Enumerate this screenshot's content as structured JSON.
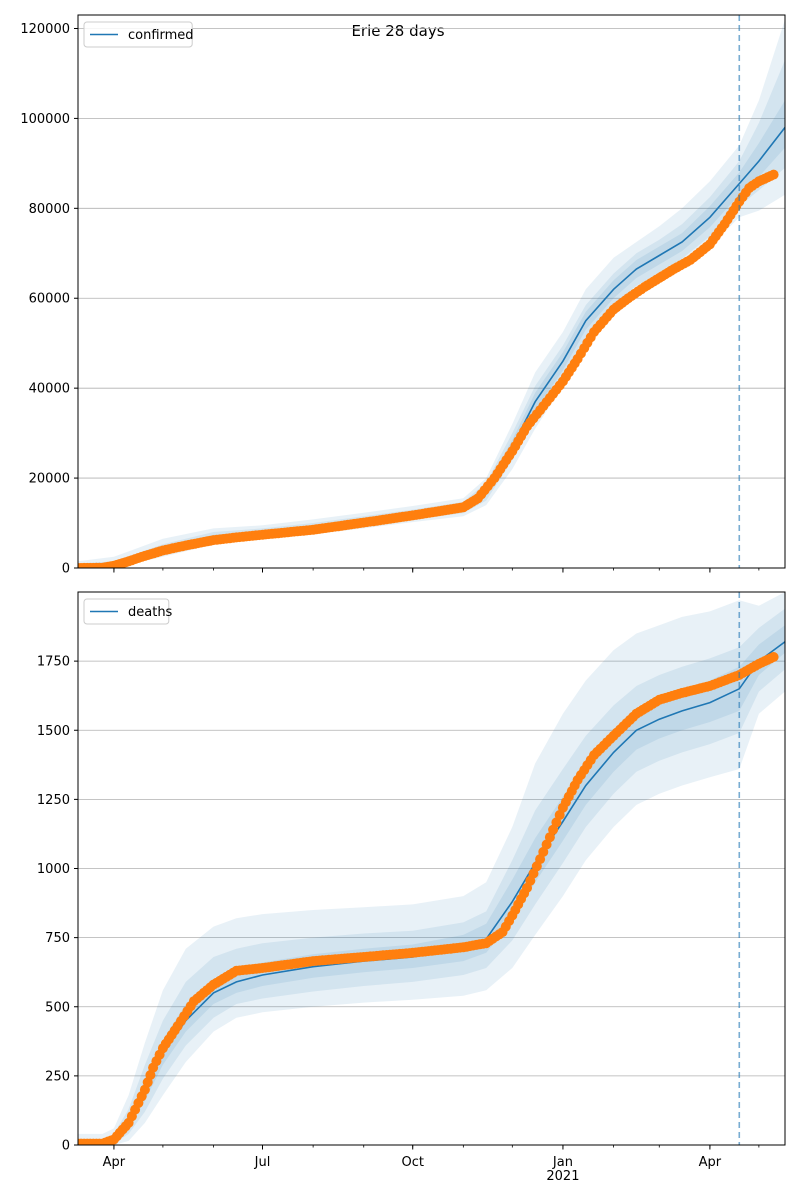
{
  "suptitle": "Erie 28 days",
  "colors": {
    "model": "#1f77b4",
    "observed": "#ff7f0e",
    "grid": "#b0b0b0"
  },
  "chart_data": [
    {
      "type": "line",
      "legend": "confirmed",
      "legend_position": "top-left",
      "grid": "y",
      "ylim": [
        0,
        123000
      ],
      "yticks": [
        0,
        20000,
        40000,
        60000,
        80000,
        100000,
        120000
      ],
      "ytick_labels": [
        "0",
        "20000",
        "40000",
        "60000",
        "80000",
        "100000",
        "120000"
      ],
      "xlim": [
        "2020-03-10",
        "2021-05-17"
      ],
      "xticks": [
        "2020-04-01",
        "2020-07-01",
        "2020-10-01",
        "2021-01-01",
        "2021-04-01"
      ],
      "xtick_labels": [
        "",
        "",
        "",
        "",
        ""
      ],
      "forecast_start": "2021-04-19",
      "model": {
        "x": [
          "2020-03-10",
          "2020-04-01",
          "2020-05-01",
          "2020-06-01",
          "2020-07-01",
          "2020-08-01",
          "2020-09-01",
          "2020-10-01",
          "2020-11-01",
          "2020-11-15",
          "2020-12-01",
          "2020-12-15",
          "2021-01-01",
          "2021-01-15",
          "2021-02-01",
          "2021-02-15",
          "2021-03-01",
          "2021-03-15",
          "2021-04-01",
          "2021-04-19",
          "2021-05-01",
          "2021-05-17"
        ],
        "y": [
          0,
          500,
          4000,
          6800,
          7800,
          9000,
          10500,
          12000,
          13500,
          17000,
          27000,
          37000,
          46000,
          55000,
          62000,
          66500,
          69500,
          72500,
          78000,
          85500,
          90500,
          98000
        ],
        "bands": [
          {
            "lower": [
              0,
              0,
              2500,
              5200,
              6500,
              7500,
              8800,
              10200,
              11500,
              14000,
              22000,
              31000,
              40500,
              49500,
              56000,
              60500,
              63500,
              66500,
              71500,
              78000,
              79500,
              83000
            ],
            "upper": [
              1500,
              2500,
              6500,
              8800,
              9500,
              10800,
              12300,
              13800,
              15500,
              20000,
              32000,
              43500,
              52500,
              62000,
              69000,
              72500,
              76000,
              80000,
              86000,
              94000,
              104000,
              122000
            ]
          },
          {
            "lower": [
              0,
              100,
              3000,
              5800,
              7000,
              8100,
              9400,
              10800,
              12200,
              15000,
              24000,
              33500,
              42500,
              51500,
              58500,
              62800,
              65800,
              68800,
              73800,
              80500,
              84000,
              89000
            ],
            "upper": [
              1000,
              1500,
              5300,
              8000,
              8800,
              10000,
              11500,
              13000,
              14700,
              19000,
              30000,
              40500,
              49500,
              58500,
              65500,
              70000,
              73000,
              76500,
              82500,
              90500,
              99000,
              113000
            ]
          },
          {
            "lower": [
              0,
              250,
              3500,
              6200,
              7300,
              8500,
              9900,
              11300,
              12800,
              16000,
              25500,
              35000,
              44000,
              53000,
              60000,
              64500,
              67500,
              70500,
              75800,
              83000,
              87000,
              93500
            ],
            "upper": [
              500,
              900,
              4600,
              7400,
              8300,
              9500,
              11000,
              12500,
              14100,
              18000,
              28500,
              39000,
              48000,
              57000,
              64000,
              68500,
              71500,
              74500,
              80500,
              88000,
              94500,
              104000
            ]
          }
        ]
      },
      "observed": {
        "x": [
          "2020-03-10",
          "2020-03-25",
          "2020-04-01",
          "2020-04-10",
          "2020-04-20",
          "2020-05-01",
          "2020-05-15",
          "2020-06-01",
          "2020-06-15",
          "2020-07-01",
          "2020-08-01",
          "2020-09-01",
          "2020-10-01",
          "2020-10-15",
          "2020-11-01",
          "2020-11-10",
          "2020-11-20",
          "2020-12-01",
          "2020-12-10",
          "2020-12-20",
          "2021-01-01",
          "2021-01-10",
          "2021-01-20",
          "2021-02-01",
          "2021-02-10",
          "2021-02-20",
          "2021-03-01",
          "2021-03-10",
          "2021-03-20",
          "2021-04-01",
          "2021-04-10",
          "2021-04-19",
          "2021-04-25",
          "2021-05-01",
          "2021-05-10"
        ],
        "y": [
          0,
          50,
          500,
          1500,
          2700,
          3900,
          5000,
          6200,
          6800,
          7400,
          8500,
          10100,
          11700,
          12500,
          13500,
          15500,
          20000,
          26000,
          31500,
          36000,
          41500,
          46500,
          52500,
          57500,
          60000,
          62500,
          64500,
          66500,
          68500,
          72000,
          76500,
          81500,
          84500,
          86000,
          87500
        ]
      }
    },
    {
      "type": "line",
      "legend": "deaths",
      "legend_position": "top-left",
      "grid": "y",
      "ylim": [
        0,
        2000
      ],
      "yticks": [
        0,
        250,
        500,
        750,
        1000,
        1250,
        1500,
        1750
      ],
      "ytick_labels": [
        "0",
        "250",
        "500",
        "750",
        "1000",
        "1250",
        "1500",
        "1750"
      ],
      "xlim": [
        "2020-03-10",
        "2021-05-17"
      ],
      "xticks": [
        "2020-04-01",
        "2020-07-01",
        "2020-10-01",
        "2021-01-01",
        "2021-04-01"
      ],
      "xtick_labels": [
        "Apr",
        "Jul",
        "Oct",
        "Jan\n2021",
        "Apr"
      ],
      "forecast_start": "2021-04-19",
      "model": {
        "x": [
          "2020-03-10",
          "2020-03-25",
          "2020-04-01",
          "2020-04-10",
          "2020-04-20",
          "2020-05-01",
          "2020-05-15",
          "2020-06-01",
          "2020-06-15",
          "2020-07-01",
          "2020-08-01",
          "2020-09-01",
          "2020-10-01",
          "2020-11-01",
          "2020-11-15",
          "2020-12-01",
          "2020-12-15",
          "2021-01-01",
          "2021-01-15",
          "2021-02-01",
          "2021-02-15",
          "2021-03-01",
          "2021-03-15",
          "2021-04-01",
          "2021-04-19",
          "2021-05-01",
          "2021-05-17"
        ],
        "y": [
          0,
          0,
          20,
          80,
          200,
          330,
          450,
          550,
          590,
          615,
          645,
          665,
          680,
          710,
          745,
          880,
          1020,
          1170,
          1300,
          1420,
          1500,
          1540,
          1570,
          1600,
          1650,
          1750,
          1820
        ],
        "bands": [
          {
            "lower": [
              0,
              0,
              0,
              15,
              80,
              180,
              300,
              410,
              460,
              480,
              500,
              515,
              525,
              540,
              560,
              640,
              760,
              900,
              1030,
              1150,
              1230,
              1270,
              1300,
              1330,
              1360,
              1560,
              1640
            ],
            "upper": [
              40,
              40,
              60,
              180,
              370,
              560,
              710,
              790,
              820,
              835,
              850,
              860,
              870,
              900,
              950,
              1150,
              1380,
              1560,
              1680,
              1790,
              1850,
              1880,
              1910,
              1930,
              1970,
              1950,
              2000
            ]
          },
          {
            "lower": [
              0,
              0,
              5,
              40,
              120,
              240,
              360,
              460,
              510,
              530,
              555,
              575,
              590,
              615,
              640,
              740,
              870,
              1020,
              1150,
              1270,
              1350,
              1390,
              1420,
              1450,
              1490,
              1640,
              1720
            ],
            "upper": [
              20,
              20,
              40,
              130,
              290,
              450,
              590,
              680,
              710,
              730,
              750,
              765,
              775,
              805,
              845,
              1030,
              1210,
              1360,
              1480,
              1590,
              1660,
              1700,
              1730,
              1760,
              1800,
              1870,
              1940
            ]
          },
          {
            "lower": [
              0,
              0,
              10,
              60,
              160,
              290,
              410,
              510,
              550,
              575,
              605,
              625,
              640,
              665,
              695,
              810,
              950,
              1100,
              1230,
              1350,
              1430,
              1470,
              1500,
              1530,
              1570,
              1700,
              1780
            ],
            "upper": [
              10,
              10,
              30,
              100,
              240,
              380,
              510,
              600,
              640,
              660,
              690,
              710,
              725,
              760,
              800,
              960,
              1110,
              1260,
              1380,
              1500,
              1570,
              1610,
              1640,
              1680,
              1730,
              1810,
              1880
            ]
          }
        ]
      },
      "observed": {
        "x": [
          "2020-03-10",
          "2020-03-25",
          "2020-04-01",
          "2020-04-10",
          "2020-04-20",
          "2020-04-25",
          "2020-05-01",
          "2020-05-10",
          "2020-05-20",
          "2020-06-01",
          "2020-06-15",
          "2020-07-01",
          "2020-08-01",
          "2020-09-01",
          "2020-10-01",
          "2020-11-01",
          "2020-11-15",
          "2020-11-25",
          "2020-12-01",
          "2020-12-10",
          "2020-12-20",
          "2021-01-01",
          "2021-01-10",
          "2021-01-20",
          "2021-02-01",
          "2021-02-15",
          "2021-03-01",
          "2021-03-15",
          "2021-04-01",
          "2021-04-19",
          "2021-05-01",
          "2021-05-10"
        ],
        "y": [
          5,
          5,
          20,
          80,
          200,
          280,
          350,
          430,
          520,
          580,
          630,
          640,
          665,
          680,
          695,
          715,
          730,
          770,
          830,
          930,
          1060,
          1220,
          1320,
          1410,
          1480,
          1560,
          1610,
          1635,
          1660,
          1700,
          1740,
          1765
        ]
      }
    }
  ]
}
